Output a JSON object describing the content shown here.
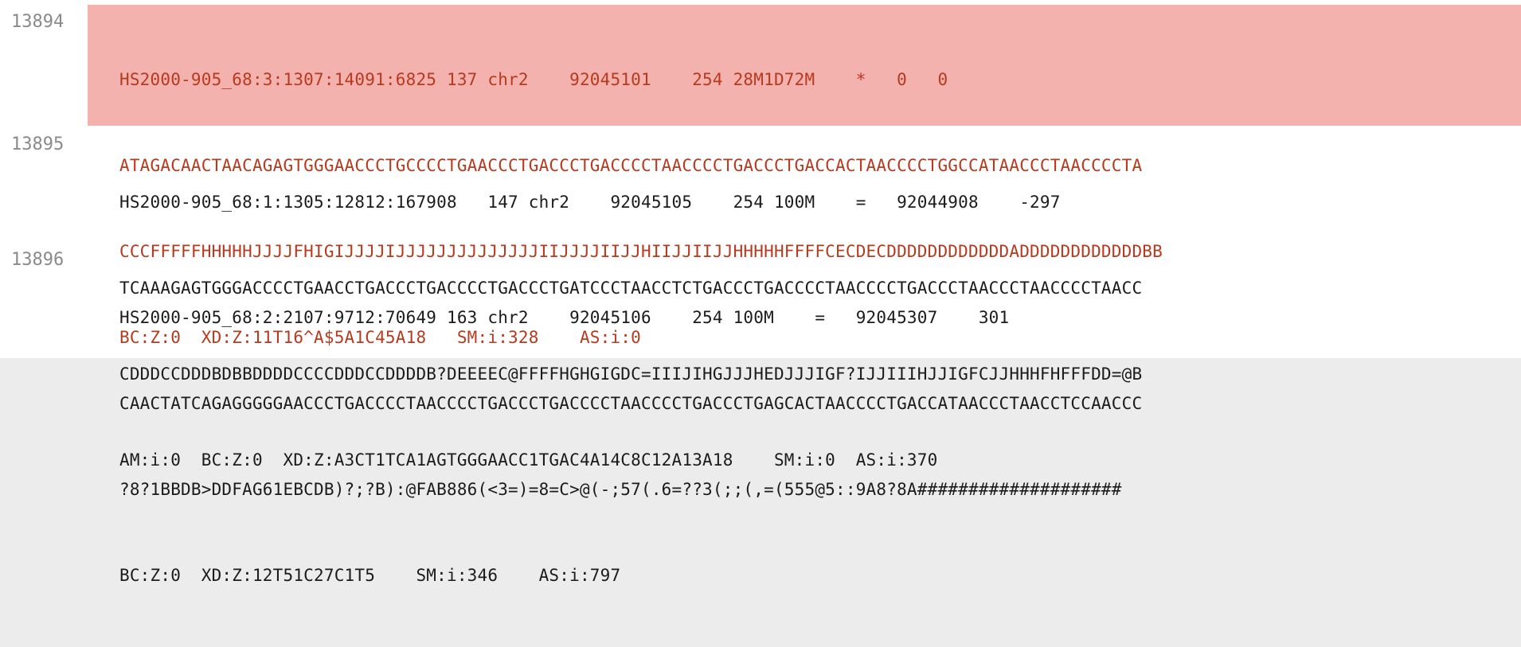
{
  "records": [
    {
      "line_number": "13894",
      "selected": true,
      "lines": [
        "HS2000-905_68:3:1307:14091:6825 137 chr2    92045101    254 28M1D72M    *   0   0",
        "ATAGACAACTAACAGAGTGGGAACCCTGCCCCTGAACCCTGACCCTGACCCCTAACCCCTGACCCTGACCACTAACCCCTGGCCATAACCCTAACCCCTA",
        "CCCFFFFFHHHHHJJJJFHIGIJJJJIJJJJJJJJJJJJJJIIJJJJIIJJHIIJJIIJJHHHHHFFFFCECDECDDDDDDDDDDDDADDDDDDDDDDDDBB",
        "BC:Z:0  XD:Z:11T16^A$5A1C45A18   SM:i:328    AS:i:0"
      ]
    },
    {
      "line_number": "13895",
      "selected": false,
      "lines": [
        "HS2000-905_68:1:1305:12812:167908   147 chr2    92045105    254 100M    =   92044908    -297",
        "TCAAAGAGTGGGACCCCTGAACCTGACCCTGACCCCTGACCCTGATCCCTAACCTCTGACCCTGACCCCTAACCCCTGACCCTAACCCTAACCCCTAACC",
        "CDDDCCDDDBDBBDDDDCCCCDDDCCDDDDB?DEEEEC@FFFFHGHGIGDC=IIIJIHGJJJHEDJJJIGF?IJJIIIHJJIGFCJJHHHFHFFFDD=@B",
        "AM:i:0  BC:Z:0  XD:Z:A3CT1TCA1AGTGGGAACC1TGAC4A14C8C12A13A18    SM:i:0  AS:i:370"
      ]
    },
    {
      "line_number": "13896",
      "selected": false,
      "lines": [
        "HS2000-905_68:2:2107:9712:70649 163 chr2    92045106    254 100M    =   92045307    301",
        "CAACTATCAGAGGGGGAACCCTGACCCCTAACCCCTGACCCTGACCCCTAACCCCTGACCCTGAGCACTAACCCCTGACCATAACCCTAACCTCCAACCC",
        "?8?1BBDB>DDFAG61EBCDB)?;?B):@FAB886(<3=)=8=C>@(-;57(.6=??3(;;(,=(555@5::9A8?8A####################",
        "BC:Z:0  XD:Z:12T51C27C1T5    SM:i:346    AS:i:797"
      ]
    }
  ],
  "colors": {
    "highlight": "#f3b2ad",
    "selected_text": "#b83a1e",
    "text": "#1b1b1b",
    "gutter": "#8a8a8a"
  }
}
